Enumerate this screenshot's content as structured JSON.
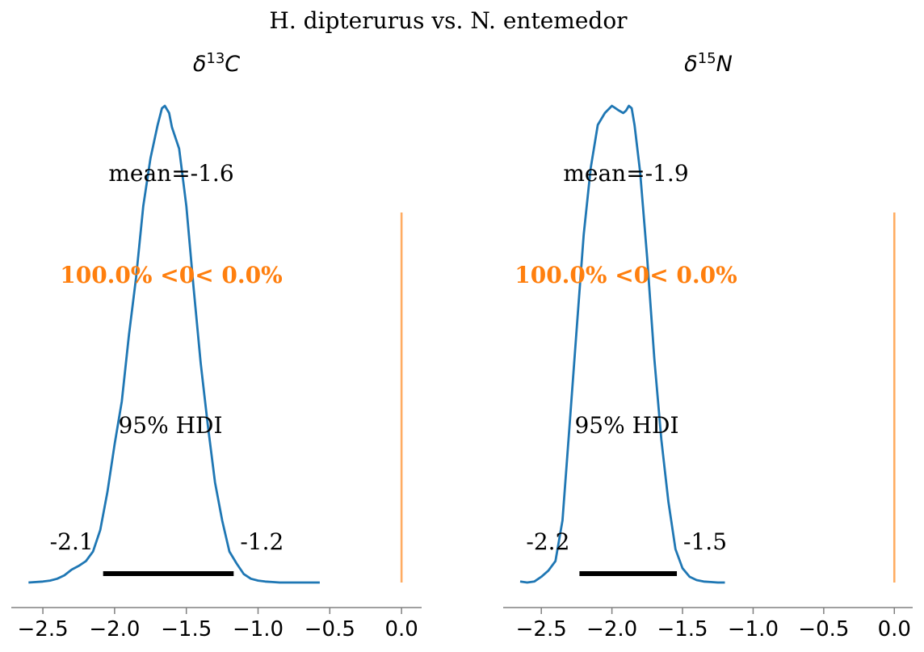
{
  "figure": {
    "suptitle": "H. dipterurus vs. N. entemedor"
  },
  "colors": {
    "density": "#1f77b4",
    "reference": "#ff7f0e",
    "hdi": "#000000",
    "axis": "#808080",
    "text": "#000000"
  },
  "chart_data": [
    {
      "type": "line",
      "title_base": "δ",
      "title_sup": "13",
      "title_var": "C",
      "xlim": [
        -2.72,
        0.14
      ],
      "xticks": [
        -2.5,
        -2.0,
        -1.5,
        -1.0,
        -0.5,
        0.0
      ],
      "xtick_labels": [
        "−2.5",
        "−2.0",
        "−1.5",
        "−1.0",
        "−0.5",
        "0.0"
      ],
      "grid": false,
      "density": {
        "x": [
          -2.6,
          -2.5,
          -2.45,
          -2.4,
          -2.35,
          -2.3,
          -2.25,
          -2.2,
          -2.15,
          -2.1,
          -2.05,
          -2.0,
          -1.95,
          -1.9,
          -1.85,
          -1.8,
          -1.75,
          -1.7,
          -1.67,
          -1.65,
          -1.62,
          -1.6,
          -1.55,
          -1.5,
          -1.45,
          -1.4,
          -1.35,
          -1.3,
          -1.25,
          -1.2,
          -1.15,
          -1.1,
          -1.05,
          -1.0,
          -0.95,
          -0.9,
          -0.85,
          -0.8,
          -0.7,
          -0.6,
          -0.57
        ],
        "y": [
          0.0,
          0.002,
          0.004,
          0.008,
          0.015,
          0.027,
          0.035,
          0.045,
          0.065,
          0.11,
          0.19,
          0.29,
          0.38,
          0.52,
          0.64,
          0.79,
          0.89,
          0.96,
          0.995,
          1.0,
          0.985,
          0.955,
          0.91,
          0.79,
          0.62,
          0.46,
          0.33,
          0.21,
          0.13,
          0.065,
          0.04,
          0.018,
          0.008,
          0.004,
          0.002,
          0.001,
          0.0,
          0.0,
          0.0,
          0.0,
          0.0
        ]
      },
      "mean_label": "mean=-1.6",
      "ref_label": "100.0% <0< 0.0%",
      "reference_value": 0.0,
      "hdi_label": "95% HDI",
      "hdi": [
        -2.08,
        -1.17
      ],
      "hdi_low_label": "-2.1",
      "hdi_high_label": "-1.2"
    },
    {
      "type": "line",
      "title_base": "δ",
      "title_sup": "15",
      "title_var": "N",
      "xlim": [
        -2.77,
        0.13
      ],
      "xticks": [
        -2.5,
        -2.0,
        -1.5,
        -1.0,
        -0.5,
        0.0
      ],
      "xtick_labels": [
        "−2.5",
        "−2.0",
        "−1.5",
        "−1.0",
        "−0.5",
        "0.0"
      ],
      "grid": false,
      "density": {
        "x": [
          -2.65,
          -2.6,
          -2.55,
          -2.5,
          -2.45,
          -2.4,
          -2.35,
          -2.3,
          -2.25,
          -2.2,
          -2.15,
          -2.1,
          -2.05,
          -2.0,
          -1.95,
          -1.92,
          -1.9,
          -1.88,
          -1.86,
          -1.84,
          -1.8,
          -1.75,
          -1.7,
          -1.65,
          -1.6,
          -1.55,
          -1.5,
          -1.45,
          -1.4,
          -1.35,
          -1.3,
          -1.25,
          -1.2
        ],
        "y": [
          0.002,
          0.0,
          0.002,
          0.012,
          0.025,
          0.045,
          0.13,
          0.33,
          0.53,
          0.73,
          0.87,
          0.96,
          0.985,
          1.0,
          0.99,
          0.985,
          0.99,
          1.0,
          0.995,
          0.96,
          0.86,
          0.68,
          0.47,
          0.3,
          0.17,
          0.07,
          0.03,
          0.012,
          0.005,
          0.002,
          0.001,
          0.0,
          0.0
        ]
      },
      "mean_label": "mean=-1.9",
      "ref_label": "100.0% <0< 0.0%",
      "reference_value": 0.0,
      "hdi_label": "95% HDI",
      "hdi": [
        -2.23,
        -1.54
      ],
      "hdi_low_label": "-2.2",
      "hdi_high_label": "-1.5"
    }
  ]
}
